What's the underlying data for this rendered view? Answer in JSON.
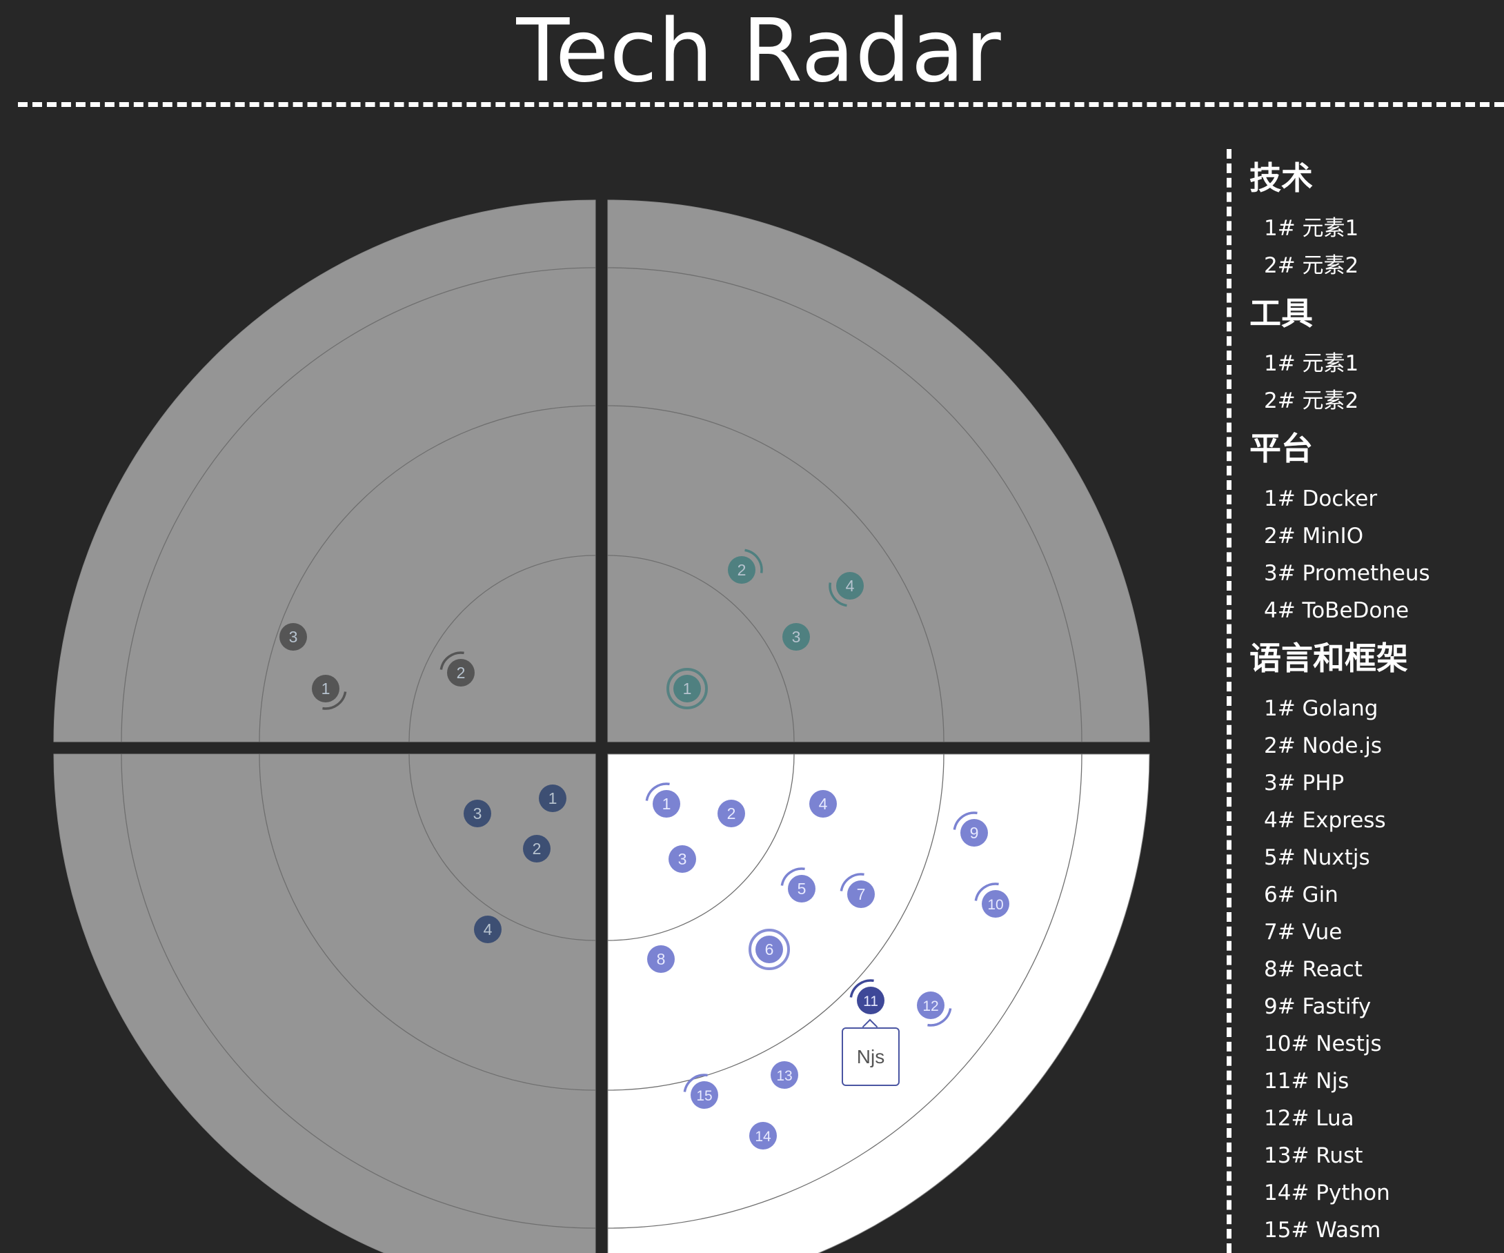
{
  "title": "Tech Radar",
  "colors": {
    "background": "#272727",
    "quadrant_inactive": "#959595",
    "quadrant_active": "#ffffff",
    "ring_line": "#6f6f6f",
    "tech_blip": "#555555",
    "tools_blip": "#4f8080",
    "languages_blip": "#3d4f73",
    "platforms_blip": "#7b83d2",
    "platforms_blip_selected": "#3e4898"
  },
  "legend": [
    {
      "title": "技术",
      "items": [
        "1# 元素1",
        "2# 元素2"
      ]
    },
    {
      "title": "工具",
      "items": [
        "1# 元素1",
        "2# 元素2"
      ]
    },
    {
      "title": "平台",
      "items": [
        "1# Docker",
        "2# MinIO",
        "3# Prometheus",
        "4# ToBeDone"
      ]
    },
    {
      "title": "语言和框架",
      "items": [
        "1# Golang",
        "2# Node.js",
        "3# PHP",
        "4# Express",
        "5# Nuxtjs",
        "6# Gin",
        "7# Vue",
        "8# React",
        "9# Fastify",
        "10# Nestjs",
        "11# Njs",
        "12# Lua",
        "13# Rust",
        "14# Python",
        "15# Wasm"
      ]
    }
  ],
  "quadrants": [
    {
      "id": "top-left",
      "active": false,
      "color": "#555555",
      "blips": [
        {
          "label": "1",
          "arc": "down-right"
        },
        {
          "label": "2",
          "arc": "up-left"
        },
        {
          "label": "3",
          "arc": ""
        }
      ]
    },
    {
      "id": "top-right",
      "active": false,
      "color": "#4f8080",
      "blips": [
        {
          "label": "1",
          "arc": "ring"
        },
        {
          "label": "2",
          "arc": "up-right"
        },
        {
          "label": "3",
          "arc": ""
        },
        {
          "label": "4",
          "arc": "down-left"
        }
      ]
    },
    {
      "id": "bottom-left",
      "active": false,
      "color": "#3d4f73",
      "blips": [
        {
          "label": "1",
          "arc": ""
        },
        {
          "label": "2",
          "arc": ""
        },
        {
          "label": "3",
          "arc": ""
        },
        {
          "label": "4",
          "arc": ""
        }
      ]
    },
    {
      "id": "bottom-right",
      "active": true,
      "color": "#7b83d2",
      "blips": [
        {
          "label": "1",
          "arc": "up-left"
        },
        {
          "label": "2",
          "arc": ""
        },
        {
          "label": "3",
          "arc": ""
        },
        {
          "label": "4",
          "arc": ""
        },
        {
          "label": "5",
          "arc": "up-left"
        },
        {
          "label": "6",
          "arc": "ring"
        },
        {
          "label": "7",
          "arc": "up-left"
        },
        {
          "label": "8",
          "arc": ""
        },
        {
          "label": "9",
          "arc": "up-left"
        },
        {
          "label": "10",
          "arc": "up-left"
        },
        {
          "label": "11",
          "arc": "up-left",
          "selected": true
        },
        {
          "label": "12",
          "arc": "down-right"
        },
        {
          "label": "13",
          "arc": ""
        },
        {
          "label": "14",
          "arc": ""
        },
        {
          "label": "15",
          "arc": "up-left"
        }
      ]
    }
  ],
  "tooltip": {
    "text": "Njs"
  }
}
